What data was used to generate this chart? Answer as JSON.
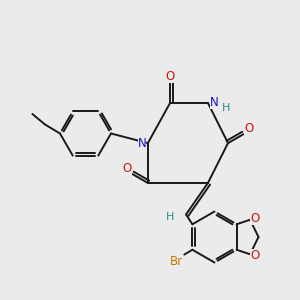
{
  "bg_color": "#ebebeb",
  "bond_color": "#1a1a1a",
  "N_color": "#1414cc",
  "O_color": "#cc1414",
  "Br_color": "#cc7700",
  "H_color": "#2a9090",
  "figsize": [
    3.0,
    3.0
  ],
  "dpi": 100,
  "xlim": [
    0,
    10
  ],
  "ylim": [
    0,
    10
  ]
}
